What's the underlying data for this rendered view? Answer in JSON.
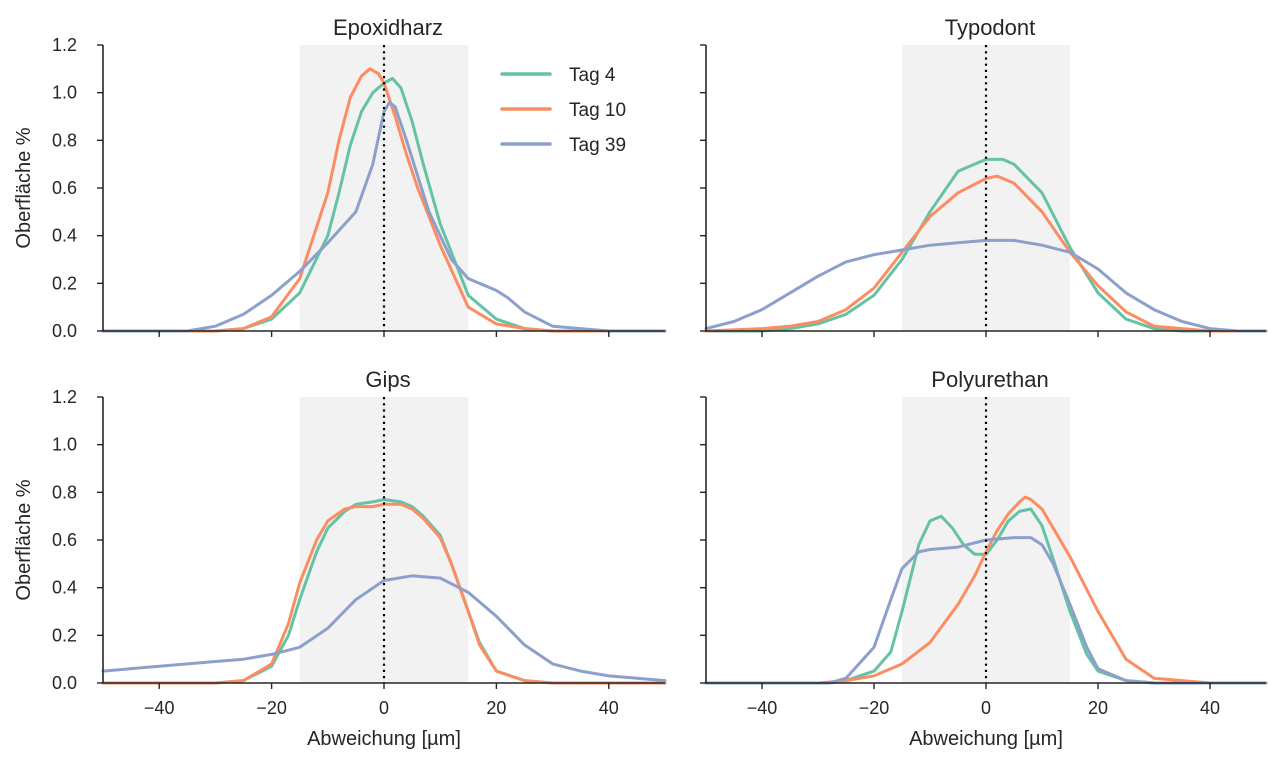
{
  "figure": {
    "colors": {
      "Tag 4": "#66c2a5",
      "Tag 10": "#fc8d62",
      "Tag 39": "#8da0cb",
      "band": "#f2f2f2"
    },
    "grid": false,
    "legend_placement": "top-right of first panel"
  },
  "chart_data": [
    {
      "type": "line",
      "title": "Epoxidharz",
      "xlabel": "",
      "ylabel": "Oberfläche %",
      "xlim": [
        -50,
        50
      ],
      "ylim": [
        0,
        1.2
      ],
      "xticks": [
        -40,
        -20,
        0,
        20,
        40
      ],
      "yticks": [
        0.0,
        0.2,
        0.4,
        0.6,
        0.8,
        1.0,
        1.2
      ],
      "shaded_band": [
        -15,
        15
      ],
      "reference_line_x": 0,
      "series": [
        {
          "name": "Tag 4",
          "x": [
            -50,
            -30,
            -25,
            -20,
            -15,
            -10,
            -8,
            -6,
            -4,
            -2,
            0,
            1.5,
            3,
            5,
            7,
            10,
            15,
            20,
            25,
            30,
            35,
            40,
            50
          ],
          "values": [
            0,
            0,
            0.01,
            0.05,
            0.16,
            0.4,
            0.58,
            0.78,
            0.92,
            1.0,
            1.04,
            1.06,
            1.02,
            0.88,
            0.7,
            0.45,
            0.15,
            0.05,
            0.01,
            0,
            0,
            0,
            0
          ]
        },
        {
          "name": "Tag 10",
          "x": [
            -50,
            -30,
            -25,
            -20,
            -15,
            -10,
            -8,
            -6,
            -4,
            -2.5,
            -1,
            0,
            2,
            4,
            6,
            8,
            10,
            15,
            20,
            25,
            30,
            50
          ],
          "values": [
            0,
            0,
            0.01,
            0.06,
            0.22,
            0.58,
            0.8,
            0.98,
            1.07,
            1.1,
            1.08,
            1.04,
            0.9,
            0.74,
            0.6,
            0.48,
            0.36,
            0.1,
            0.03,
            0.01,
            0,
            0
          ]
        },
        {
          "name": "Tag 39",
          "x": [
            -50,
            -35,
            -30,
            -25,
            -20,
            -15,
            -10,
            -5,
            -2,
            0,
            1,
            2,
            4,
            6,
            8,
            10,
            12,
            15,
            18,
            20,
            22,
            25,
            30,
            35,
            40,
            50
          ],
          "values": [
            0,
            0,
            0.02,
            0.07,
            0.15,
            0.25,
            0.37,
            0.5,
            0.7,
            0.92,
            0.96,
            0.94,
            0.8,
            0.65,
            0.5,
            0.4,
            0.3,
            0.22,
            0.19,
            0.17,
            0.14,
            0.08,
            0.02,
            0.01,
            0,
            0
          ]
        }
      ]
    },
    {
      "type": "line",
      "title": "Typodont",
      "xlabel": "",
      "ylabel": "",
      "xlim": [
        -50,
        50
      ],
      "ylim": [
        0,
        1.2
      ],
      "xticks": [
        -40,
        -20,
        0,
        20,
        40
      ],
      "yticks": [
        0.0,
        0.2,
        0.4,
        0.6,
        0.8,
        1.0,
        1.2
      ],
      "shaded_band": [
        -15,
        15
      ],
      "reference_line_x": 0,
      "series": [
        {
          "name": "Tag 4",
          "x": [
            -50,
            -40,
            -35,
            -30,
            -25,
            -20,
            -15,
            -10,
            -5,
            0,
            3,
            5,
            10,
            15,
            20,
            25,
            30,
            35,
            40,
            50
          ],
          "values": [
            0,
            0.0,
            0.01,
            0.03,
            0.07,
            0.15,
            0.3,
            0.5,
            0.67,
            0.72,
            0.72,
            0.7,
            0.58,
            0.35,
            0.16,
            0.05,
            0.01,
            0,
            0,
            0
          ]
        },
        {
          "name": "Tag 10",
          "x": [
            -50,
            -40,
            -35,
            -30,
            -25,
            -20,
            -15,
            -10,
            -5,
            0,
            2,
            5,
            10,
            15,
            20,
            25,
            30,
            35,
            40,
            50
          ],
          "values": [
            0,
            0.01,
            0.02,
            0.04,
            0.09,
            0.18,
            0.33,
            0.48,
            0.58,
            0.64,
            0.65,
            0.62,
            0.5,
            0.33,
            0.19,
            0.08,
            0.02,
            0.01,
            0,
            0
          ]
        },
        {
          "name": "Tag 39",
          "x": [
            -50,
            -45,
            -40,
            -35,
            -30,
            -25,
            -20,
            -15,
            -10,
            -5,
            0,
            5,
            10,
            15,
            20,
            25,
            30,
            35,
            40,
            45,
            50
          ],
          "values": [
            0.01,
            0.04,
            0.09,
            0.16,
            0.23,
            0.29,
            0.32,
            0.34,
            0.36,
            0.37,
            0.38,
            0.38,
            0.36,
            0.33,
            0.26,
            0.16,
            0.09,
            0.04,
            0.01,
            0.0,
            0
          ]
        }
      ]
    },
    {
      "type": "line",
      "title": "Gips",
      "xlabel": "Abweichung [µm]",
      "ylabel": "Oberfläche %",
      "xlim": [
        -50,
        50
      ],
      "ylim": [
        0,
        1.2
      ],
      "xticks": [
        -40,
        -20,
        0,
        20,
        40
      ],
      "yticks": [
        0.0,
        0.2,
        0.4,
        0.6,
        0.8,
        1.0,
        1.2
      ],
      "shaded_band": [
        -15,
        15
      ],
      "reference_line_x": 0,
      "series": [
        {
          "name": "Tag 4",
          "x": [
            -50,
            -30,
            -25,
            -20,
            -17,
            -15,
            -12,
            -10,
            -7,
            -5,
            -2,
            0,
            3,
            5,
            7,
            10,
            12,
            15,
            17,
            20,
            25,
            30,
            50
          ],
          "values": [
            0,
            0,
            0.01,
            0.07,
            0.2,
            0.35,
            0.55,
            0.65,
            0.72,
            0.75,
            0.76,
            0.77,
            0.76,
            0.74,
            0.7,
            0.62,
            0.5,
            0.3,
            0.17,
            0.05,
            0.01,
            0,
            0
          ]
        },
        {
          "name": "Tag 10",
          "x": [
            -50,
            -30,
            -25,
            -20,
            -17,
            -15,
            -12,
            -10,
            -7,
            -5,
            -2,
            0,
            3,
            5,
            7,
            10,
            12,
            15,
            17,
            20,
            25,
            30,
            50
          ],
          "values": [
            0,
            0,
            0.01,
            0.08,
            0.25,
            0.42,
            0.6,
            0.68,
            0.73,
            0.74,
            0.74,
            0.75,
            0.75,
            0.73,
            0.69,
            0.61,
            0.5,
            0.3,
            0.16,
            0.05,
            0.01,
            0,
            0
          ]
        },
        {
          "name": "Tag 39",
          "x": [
            -50,
            -40,
            -30,
            -25,
            -20,
            -15,
            -10,
            -5,
            0,
            5,
            10,
            15,
            20,
            25,
            30,
            35,
            40,
            45,
            50
          ],
          "values": [
            0.05,
            0.07,
            0.09,
            0.1,
            0.12,
            0.15,
            0.23,
            0.35,
            0.43,
            0.45,
            0.44,
            0.38,
            0.28,
            0.16,
            0.08,
            0.05,
            0.03,
            0.02,
            0.01
          ]
        }
      ]
    },
    {
      "type": "line",
      "title": "Polyurethan",
      "xlabel": "Abweichung [µm]",
      "ylabel": "",
      "xlim": [
        -50,
        50
      ],
      "ylim": [
        0,
        1.2
      ],
      "xticks": [
        -40,
        -20,
        0,
        20,
        40
      ],
      "yticks": [
        0.0,
        0.2,
        0.4,
        0.6,
        0.8,
        1.0,
        1.2
      ],
      "shaded_band": [
        -15,
        15
      ],
      "reference_line_x": 0,
      "series": [
        {
          "name": "Tag 4",
          "x": [
            -50,
            -28,
            -25,
            -20,
            -17,
            -15,
            -12,
            -10,
            -8,
            -6,
            -4,
            -2,
            0,
            2,
            4,
            6,
            8,
            10,
            12,
            15,
            18,
            20,
            25,
            30,
            50
          ],
          "values": [
            0,
            0,
            0.01,
            0.05,
            0.13,
            0.3,
            0.58,
            0.68,
            0.7,
            0.65,
            0.58,
            0.54,
            0.54,
            0.6,
            0.68,
            0.72,
            0.73,
            0.66,
            0.52,
            0.3,
            0.12,
            0.05,
            0.01,
            0,
            0
          ]
        },
        {
          "name": "Tag 10",
          "x": [
            -50,
            -30,
            -25,
            -20,
            -15,
            -10,
            -5,
            -2,
            0,
            2,
            4,
            6,
            7,
            8,
            10,
            12,
            15,
            20,
            25,
            30,
            35,
            40,
            50
          ],
          "values": [
            0,
            0,
            0.01,
            0.03,
            0.08,
            0.17,
            0.33,
            0.45,
            0.55,
            0.64,
            0.71,
            0.76,
            0.78,
            0.77,
            0.73,
            0.65,
            0.53,
            0.3,
            0.1,
            0.02,
            0.01,
            0,
            0
          ]
        },
        {
          "name": "Tag 39",
          "x": [
            -50,
            -28,
            -25,
            -20,
            -17,
            -15,
            -12,
            -10,
            -5,
            0,
            5,
            8,
            10,
            12,
            15,
            18,
            20,
            25,
            30,
            50
          ],
          "values": [
            0,
            0,
            0.02,
            0.15,
            0.35,
            0.48,
            0.55,
            0.56,
            0.57,
            0.6,
            0.61,
            0.61,
            0.58,
            0.5,
            0.33,
            0.15,
            0.06,
            0.01,
            0,
            0
          ]
        }
      ]
    }
  ]
}
